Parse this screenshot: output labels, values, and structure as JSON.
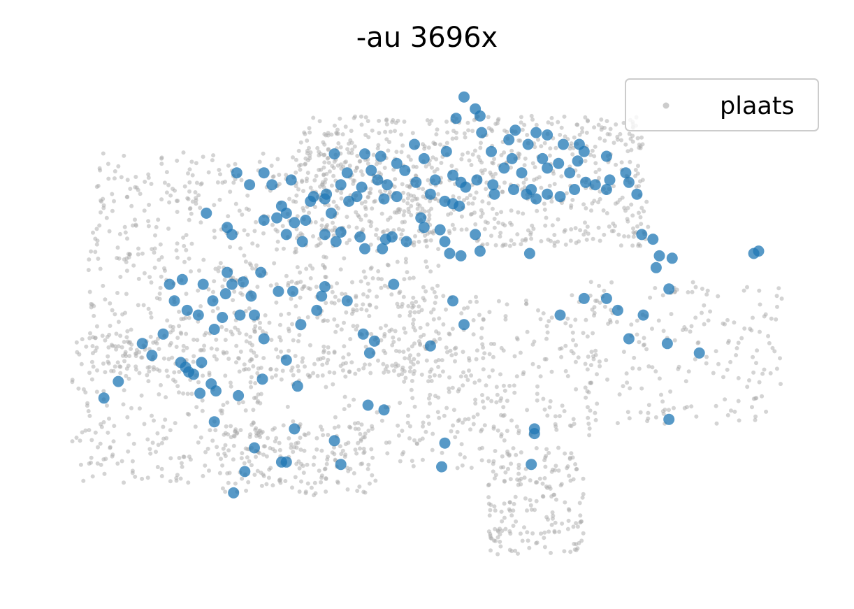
{
  "chart_data": {
    "type": "scatter",
    "title": "-au 3696x",
    "xlabel": "",
    "ylabel": "",
    "axes_visible": false,
    "grid": false,
    "legend": {
      "placement": "top-right",
      "entries": [
        "plaats"
      ]
    },
    "xlim": [
      5.9,
      10.55
    ],
    "ylim": [
      45.8,
      47.85
    ],
    "series": [
      {
        "name": "plaats",
        "color": "#aaaaaa",
        "opacity": 0.5,
        "role": "background",
        "note_regions": [
          {
            "lon": [
              6.1,
              8.3
            ],
            "lat": [
              46.6,
              47.55
            ],
            "count": 780
          },
          {
            "lon": [
              7.4,
              9.6
            ],
            "lat": [
              47.15,
              47.7
            ],
            "count": 700
          },
          {
            "lon": [
              6.0,
              7.2
            ],
            "lat": [
              46.15,
              46.8
            ],
            "count": 260
          },
          {
            "lon": [
              6.9,
              7.9
            ],
            "lat": [
              46.1,
              46.4
            ],
            "count": 160
          },
          {
            "lon": [
              8.6,
              9.2
            ],
            "lat": [
              45.85,
              46.3
            ],
            "count": 180
          },
          {
            "lon": [
              8.0,
              9.3
            ],
            "lat": [
              46.35,
              46.95
            ],
            "count": 220
          },
          {
            "lon": [
              9.2,
              10.45
            ],
            "lat": [
              46.4,
              47.0
            ],
            "count": 190
          },
          {
            "lon": [
              7.1,
              8.8
            ],
            "lat": [
              46.2,
              46.8
            ],
            "count": 200
          }
        ]
      },
      {
        "name": "-au",
        "color": "#1f77b4",
        "opacity": 0.75,
        "points": [
          [
            8.45,
            47.78
          ],
          [
            8.52,
            47.73
          ],
          [
            8.55,
            47.7
          ],
          [
            8.4,
            47.69
          ],
          [
            8.56,
            47.63
          ],
          [
            8.77,
            47.64
          ],
          [
            8.9,
            47.63
          ],
          [
            8.97,
            47.62
          ],
          [
            8.73,
            47.6
          ],
          [
            8.85,
            47.58
          ],
          [
            9.07,
            47.58
          ],
          [
            9.17,
            47.58
          ],
          [
            9.2,
            47.55
          ],
          [
            8.62,
            47.55
          ],
          [
            8.14,
            47.58
          ],
          [
            8.2,
            47.52
          ],
          [
            8.34,
            47.55
          ],
          [
            7.64,
            47.54
          ],
          [
            7.83,
            47.54
          ],
          [
            7.93,
            47.53
          ],
          [
            8.03,
            47.5
          ],
          [
            8.08,
            47.47
          ],
          [
            7.87,
            47.47
          ],
          [
            7.72,
            47.46
          ],
          [
            7.91,
            47.43
          ],
          [
            7.68,
            47.41
          ],
          [
            7.81,
            47.4
          ],
          [
            7.97,
            47.41
          ],
          [
            8.15,
            47.42
          ],
          [
            8.27,
            47.43
          ],
          [
            8.38,
            47.45
          ],
          [
            8.43,
            47.42
          ],
          [
            8.46,
            47.4
          ],
          [
            8.53,
            47.43
          ],
          [
            8.7,
            47.48
          ],
          [
            8.81,
            47.46
          ],
          [
            8.75,
            47.52
          ],
          [
            8.94,
            47.52
          ],
          [
            8.97,
            47.48
          ],
          [
            9.04,
            47.5
          ],
          [
            9.11,
            47.46
          ],
          [
            9.16,
            47.51
          ],
          [
            9.21,
            47.42
          ],
          [
            9.27,
            47.41
          ],
          [
            8.63,
            47.41
          ],
          [
            8.64,
            47.37
          ],
          [
            8.76,
            47.39
          ],
          [
            8.84,
            47.37
          ],
          [
            8.87,
            47.39
          ],
          [
            8.9,
            47.35
          ],
          [
            8.97,
            47.37
          ],
          [
            9.05,
            47.36
          ],
          [
            9.14,
            47.39
          ],
          [
            8.24,
            47.37
          ],
          [
            8.33,
            47.34
          ],
          [
            8.38,
            47.33
          ],
          [
            8.42,
            47.32
          ],
          [
            8.03,
            47.36
          ],
          [
            7.95,
            47.35
          ],
          [
            7.78,
            47.36
          ],
          [
            7.73,
            47.34
          ],
          [
            7.59,
            47.37
          ],
          [
            7.62,
            47.29
          ],
          [
            7.37,
            47.43
          ],
          [
            7.2,
            47.46
          ],
          [
            7.25,
            47.41
          ],
          [
            7.03,
            47.46
          ],
          [
            7.11,
            47.41
          ],
          [
            6.84,
            47.29
          ],
          [
            6.97,
            47.23
          ],
          [
            7.0,
            47.2
          ],
          [
            7.2,
            47.26
          ],
          [
            7.28,
            47.27
          ],
          [
            7.31,
            47.32
          ],
          [
            7.39,
            47.25
          ],
          [
            7.46,
            47.26
          ],
          [
            7.49,
            47.34
          ],
          [
            7.51,
            47.36
          ],
          [
            7.58,
            47.35
          ],
          [
            7.34,
            47.29
          ],
          [
            7.34,
            47.2
          ],
          [
            7.44,
            47.17
          ],
          [
            7.58,
            47.2
          ],
          [
            7.65,
            47.17
          ],
          [
            7.68,
            47.21
          ],
          [
            7.8,
            47.19
          ],
          [
            7.83,
            47.14
          ],
          [
            7.94,
            47.14
          ],
          [
            7.96,
            47.18
          ],
          [
            8.0,
            47.19
          ],
          [
            8.09,
            47.17
          ],
          [
            8.18,
            47.27
          ],
          [
            8.2,
            47.23
          ],
          [
            8.3,
            47.22
          ],
          [
            8.33,
            47.17
          ],
          [
            8.36,
            47.12
          ],
          [
            8.43,
            47.11
          ],
          [
            8.52,
            47.2
          ],
          [
            8.55,
            47.13
          ],
          [
            8.86,
            47.12
          ],
          [
            9.34,
            47.53
          ],
          [
            9.36,
            47.43
          ],
          [
            9.34,
            47.39
          ],
          [
            9.46,
            47.46
          ],
          [
            9.48,
            47.42
          ],
          [
            9.53,
            47.37
          ],
          [
            9.56,
            47.2
          ],
          [
            9.63,
            47.18
          ],
          [
            9.67,
            47.11
          ],
          [
            9.65,
            47.06
          ],
          [
            9.75,
            47.1
          ],
          [
            9.73,
            46.97
          ],
          [
            10.26,
            47.12
          ],
          [
            10.29,
            47.13
          ],
          [
            9.2,
            46.93
          ],
          [
            9.34,
            46.93
          ],
          [
            9.41,
            46.88
          ],
          [
            9.57,
            46.86
          ],
          [
            9.05,
            46.86
          ],
          [
            9.48,
            46.76
          ],
          [
            9.72,
            46.74
          ],
          [
            9.92,
            46.7
          ],
          [
            6.97,
            47.04
          ],
          [
            6.82,
            46.99
          ],
          [
            6.88,
            46.92
          ],
          [
            6.79,
            46.86
          ],
          [
            6.72,
            46.88
          ],
          [
            6.64,
            46.92
          ],
          [
            6.61,
            46.99
          ],
          [
            6.69,
            47.01
          ],
          [
            7.0,
            46.99
          ],
          [
            7.07,
            47.0
          ],
          [
            7.18,
            47.04
          ],
          [
            6.96,
            46.95
          ],
          [
            7.12,
            46.94
          ],
          [
            7.29,
            46.96
          ],
          [
            7.38,
            46.96
          ],
          [
            7.14,
            46.86
          ],
          [
            7.05,
            46.86
          ],
          [
            6.94,
            46.85
          ],
          [
            6.89,
            46.8
          ],
          [
            6.57,
            46.78
          ],
          [
            6.44,
            46.74
          ],
          [
            6.5,
            46.69
          ],
          [
            6.68,
            46.66
          ],
          [
            6.71,
            46.64
          ],
          [
            6.73,
            46.62
          ],
          [
            6.81,
            46.66
          ],
          [
            6.76,
            46.61
          ],
          [
            6.87,
            46.57
          ],
          [
            6.8,
            46.53
          ],
          [
            6.9,
            46.54
          ],
          [
            7.04,
            46.52
          ],
          [
            6.29,
            46.58
          ],
          [
            6.2,
            46.51
          ],
          [
            7.2,
            46.76
          ],
          [
            7.43,
            46.82
          ],
          [
            7.56,
            46.94
          ],
          [
            7.53,
            46.88
          ],
          [
            7.58,
            46.98
          ],
          [
            7.72,
            46.92
          ],
          [
            7.82,
            46.78
          ],
          [
            7.89,
            46.75
          ],
          [
            7.86,
            46.7
          ],
          [
            8.45,
            46.82
          ],
          [
            8.38,
            46.92
          ],
          [
            8.01,
            46.99
          ],
          [
            8.24,
            46.73
          ],
          [
            7.34,
            46.67
          ],
          [
            7.19,
            46.59
          ],
          [
            7.41,
            46.56
          ],
          [
            7.85,
            46.48
          ],
          [
            7.95,
            46.46
          ],
          [
            7.64,
            46.33
          ],
          [
            7.34,
            46.24
          ],
          [
            7.31,
            46.24
          ],
          [
            7.68,
            46.23
          ],
          [
            7.08,
            46.2
          ],
          [
            7.14,
            46.3
          ],
          [
            7.39,
            46.38
          ],
          [
            6.89,
            46.41
          ],
          [
            7.01,
            46.11
          ],
          [
            8.33,
            46.32
          ],
          [
            8.31,
            46.22
          ],
          [
            8.89,
            46.36
          ],
          [
            8.89,
            46.38
          ],
          [
            8.87,
            46.23
          ],
          [
            9.73,
            46.42
          ]
        ]
      }
    ]
  }
}
